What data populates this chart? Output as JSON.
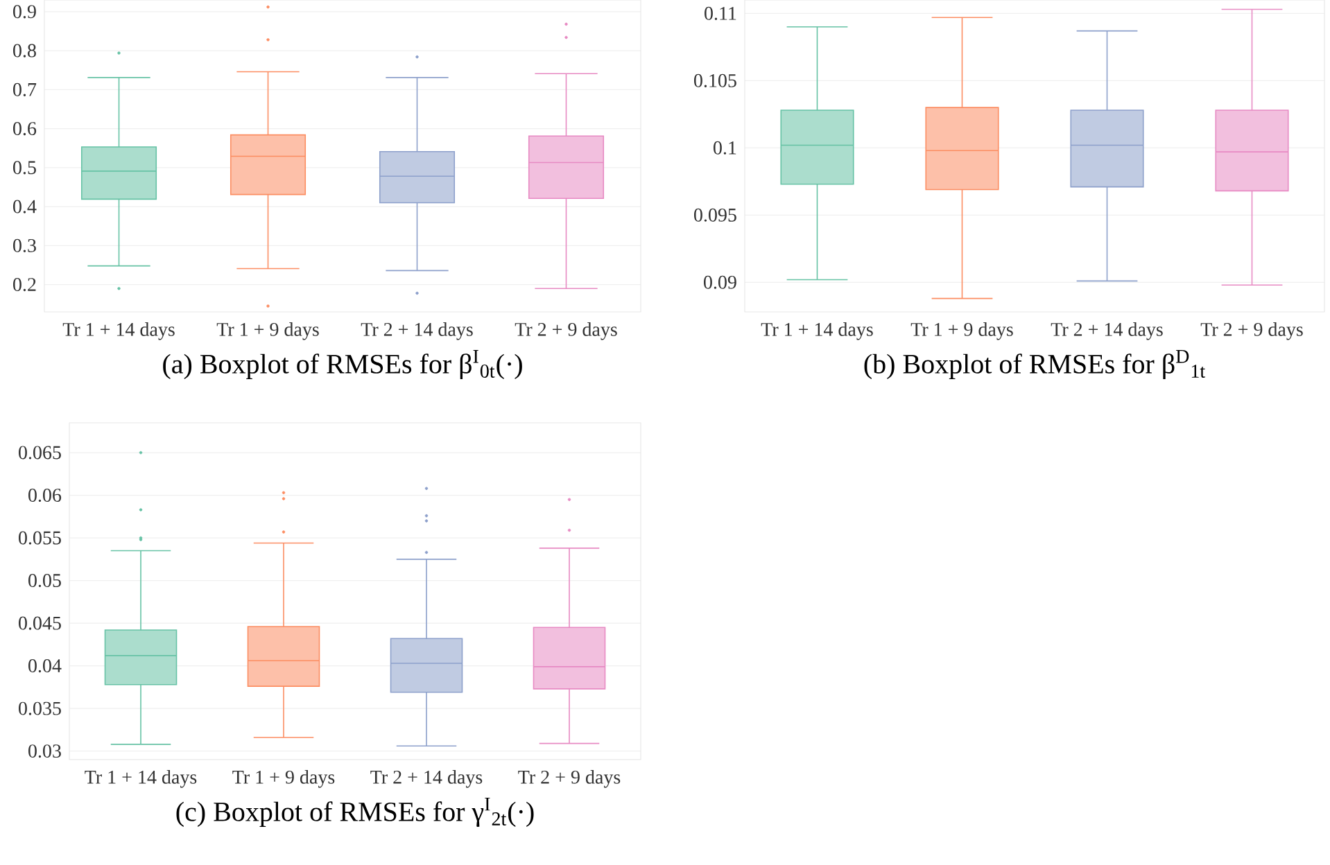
{
  "chart_data": [
    {
      "type": "box",
      "title": "(a) Boxplot of RMSEs for β$^{I}$$_{0t}$(·)",
      "categories": [
        "Tr 1 + 14 days",
        "Tr 1 + 9 days",
        "Tr 2 + 14 days",
        "Tr 2 + 9 days"
      ],
      "colors": [
        "#66c2a5",
        "#fc8d62",
        "#8da0cb",
        "#e78ac3"
      ],
      "ylim": [
        0.13,
        0.93
      ],
      "yticks": [
        0.2,
        0.3,
        0.4,
        0.5,
        0.6,
        0.7,
        0.8,
        0.9
      ],
      "grid": "y",
      "boxes": [
        {
          "low": 0.248,
          "q1": 0.419,
          "median": 0.491,
          "q3": 0.553,
          "high": 0.731,
          "outliers": [
            0.794,
            0.19
          ]
        },
        {
          "low": 0.241,
          "q1": 0.431,
          "median": 0.529,
          "q3": 0.584,
          "high": 0.746,
          "outliers": [
            0.912,
            0.828,
            0.145
          ]
        },
        {
          "low": 0.236,
          "q1": 0.41,
          "median": 0.478,
          "q3": 0.541,
          "high": 0.731,
          "outliers": [
            0.784,
            0.178
          ]
        },
        {
          "low": 0.19,
          "q1": 0.421,
          "median": 0.513,
          "q3": 0.581,
          "high": 0.741,
          "outliers": [
            0.868,
            0.834
          ]
        }
      ]
    },
    {
      "type": "box",
      "title": "(b) Boxplot of RMSEs for β$^{D}$$_{1t}$",
      "categories": [
        "Tr 1 + 14 days",
        "Tr 1 + 9 days",
        "Tr 2 + 14 days",
        "Tr 2 + 9 days"
      ],
      "colors": [
        "#66c2a5",
        "#fc8d62",
        "#8da0cb",
        "#e78ac3"
      ],
      "ylim": [
        0.0878,
        0.111
      ],
      "yticks": [
        0.09,
        0.095,
        0.1,
        0.105,
        0.11
      ],
      "grid": "y",
      "boxes": [
        {
          "low": 0.0902,
          "q1": 0.0973,
          "median": 0.1002,
          "q3": 0.1028,
          "high": 0.109
        },
        {
          "low": 0.0888,
          "q1": 0.0969,
          "median": 0.0998,
          "q3": 0.103,
          "high": 0.1097
        },
        {
          "low": 0.0901,
          "q1": 0.0971,
          "median": 0.1002,
          "q3": 0.1028,
          "high": 0.1087
        },
        {
          "low": 0.0898,
          "q1": 0.0968,
          "median": 0.0997,
          "q3": 0.1028,
          "high": 0.1103
        }
      ]
    },
    {
      "type": "box",
      "title": "(c) Boxplot of RMSEs for γ$^{I}$$_{2t}$(·)",
      "categories": [
        "Tr 1 + 14 days",
        "Tr 1 + 9 days",
        "Tr 2 + 14 days",
        "Tr 2 + 9 days"
      ],
      "colors": [
        "#66c2a5",
        "#fc8d62",
        "#8da0cb",
        "#e78ac3"
      ],
      "ylim": [
        0.029,
        0.0685
      ],
      "yticks": [
        0.03,
        0.035,
        0.04,
        0.045,
        0.05,
        0.055,
        0.06,
        0.065
      ],
      "grid": "y",
      "boxes": [
        {
          "low": 0.0308,
          "q1": 0.0378,
          "median": 0.0412,
          "q3": 0.0442,
          "high": 0.0535,
          "outliers": [
            0.065,
            0.0583,
            0.055,
            0.0548
          ]
        },
        {
          "low": 0.0316,
          "q1": 0.0376,
          "median": 0.0406,
          "q3": 0.0446,
          "high": 0.0544,
          "outliers": [
            0.0603,
            0.0596,
            0.0557
          ]
        },
        {
          "low": 0.0306,
          "q1": 0.0369,
          "median": 0.0403,
          "q3": 0.0432,
          "high": 0.0525,
          "outliers": [
            0.0608,
            0.0576,
            0.057,
            0.0533
          ]
        },
        {
          "low": 0.0309,
          "q1": 0.0373,
          "median": 0.0399,
          "q3": 0.0445,
          "high": 0.0538,
          "outliers": [
            0.0595,
            0.0559
          ]
        }
      ]
    }
  ]
}
